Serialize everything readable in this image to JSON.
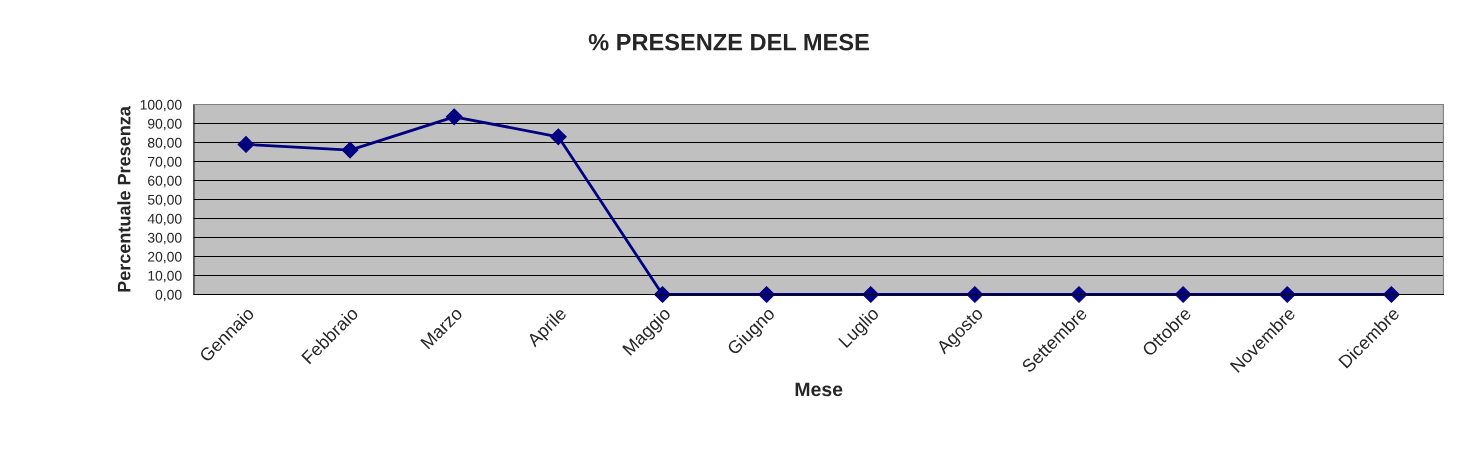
{
  "chart_data": {
    "type": "line",
    "title": "% PRESENZE DEL MESE",
    "xlabel": "Mese",
    "ylabel": "Percentuale Presenza",
    "categories": [
      "Gennaio",
      "Febbraio",
      "Marzo",
      "Aprile",
      "Maggio",
      "Giugno",
      "Luglio",
      "Agosto",
      "Settembre",
      "Ottobre",
      "Novembre",
      "Dicembre"
    ],
    "series": [
      {
        "color": "#000080",
        "values": [
          79,
          76,
          93.5,
          83,
          0,
          0,
          0,
          0,
          0,
          0,
          0,
          0
        ]
      }
    ],
    "ylim": [
      0,
      100
    ],
    "yticks": [
      {
        "value": 0,
        "label": "0,00"
      },
      {
        "value": 10,
        "label": "10,00"
      },
      {
        "value": 20,
        "label": "20,00"
      },
      {
        "value": 30,
        "label": "30,00"
      },
      {
        "value": 40,
        "label": "40,00"
      },
      {
        "value": 50,
        "label": "50,00"
      },
      {
        "value": 60,
        "label": "60,00"
      },
      {
        "value": 70,
        "label": "70,00"
      },
      {
        "value": 80,
        "label": "80,00"
      },
      {
        "value": 90,
        "label": "90,00"
      },
      {
        "value": 100,
        "label": "100,00"
      }
    ],
    "grid": "y",
    "marker": "diamond",
    "line_style": "solid"
  }
}
